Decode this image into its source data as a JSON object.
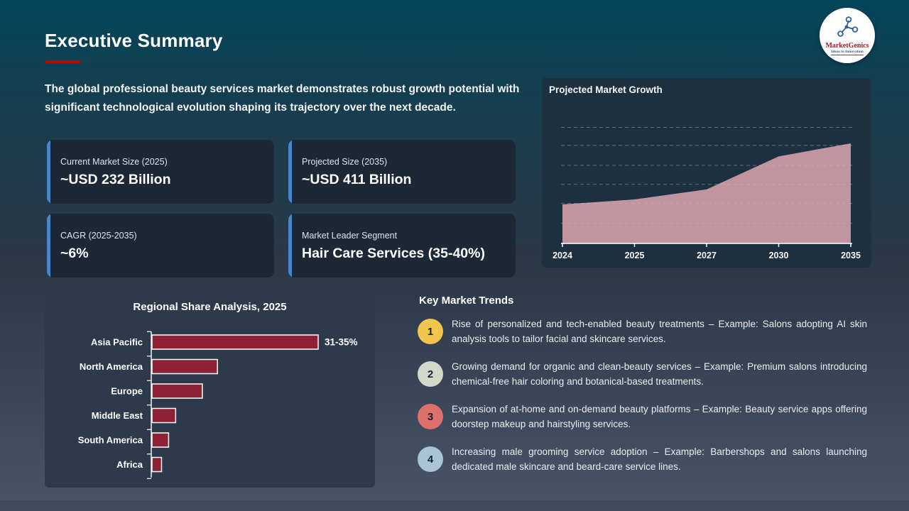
{
  "slide": {
    "title": "Executive Summary",
    "intro": "The global professional beauty services market demonstrates robust growth potential with significant technological evolution shaping its trajectory over the next decade."
  },
  "logo": {
    "brand": "MarketGenics",
    "tagline": "Ideas to Innovation"
  },
  "stat_cards": [
    {
      "label": "Current Market Size (2025)",
      "value": "~USD 232 Billion"
    },
    {
      "label": "Projected Size (2035)",
      "value": "~USD 411 Billion"
    },
    {
      "label": "CAGR (2025-2035)",
      "value": "~6%"
    },
    {
      "label": "Market Leader Segment",
      "value": "Hair Care Services (35-40%)"
    }
  ],
  "chart_data": [
    {
      "type": "area",
      "title": "Projected Market Growth",
      "x": [
        "2024",
        "2025",
        "2027",
        "2030",
        "2035"
      ],
      "values": [
        39,
        44,
        54,
        87,
        100
      ],
      "ylabel": "",
      "xlabel": "",
      "ylim": [
        0,
        120
      ],
      "gridlines": [
        20,
        40,
        59,
        78,
        98,
        116
      ],
      "grid_style": "dashed",
      "area_color": "rgba(228,172,182,0.82)",
      "axis_color": "#FFFFFF",
      "legend": "none"
    },
    {
      "type": "bar",
      "orientation": "horizontal",
      "title": "Regional Share Analysis, 2025",
      "categories": [
        "Asia Pacific",
        "North America",
        "Europe",
        "Middle East",
        "South America",
        "Africa"
      ],
      "values": [
        33,
        13,
        10,
        4.7,
        3.3,
        1.9
      ],
      "value_labels": [
        "31-35%",
        "",
        "",
        "",
        "",
        ""
      ],
      "xlim": [
        0,
        33
      ],
      "bar_color": "#8E2133",
      "bar_border_color": "#FFFFFF",
      "axis_color": "#FFFFFF",
      "legend": "none"
    }
  ],
  "trends": {
    "title": "Key Market Trends",
    "items": [
      {
        "num": "1",
        "color": "#F0C64F",
        "text": "Rise of personalized and tech-enabled beauty treatments – Example: Salons adopting AI skin analysis tools to tailor facial and skincare services."
      },
      {
        "num": "2",
        "color": "#D3DACC",
        "text": "Growing demand for organic and clean-beauty services – Example: Premium salons introducing chemical-free hair coloring and botanical-based treatments."
      },
      {
        "num": "3",
        "color": "#DD6F6D",
        "text": "Expansion of at-home and on-demand beauty platforms – Example: Beauty service apps offering doorstep makeup and hairstyling services."
      },
      {
        "num": "4",
        "color": "#A9C4D4",
        "text": "Increasing male grooming service adoption – Example: Barbershops and salons launching dedicated male skincare and beard-care service lines."
      }
    ]
  },
  "colors": {
    "title_accent": "#C00000",
    "stat_card_accent": "#4A86C8",
    "bar_red": "#8E2133",
    "area_pink": "#C2949E"
  }
}
